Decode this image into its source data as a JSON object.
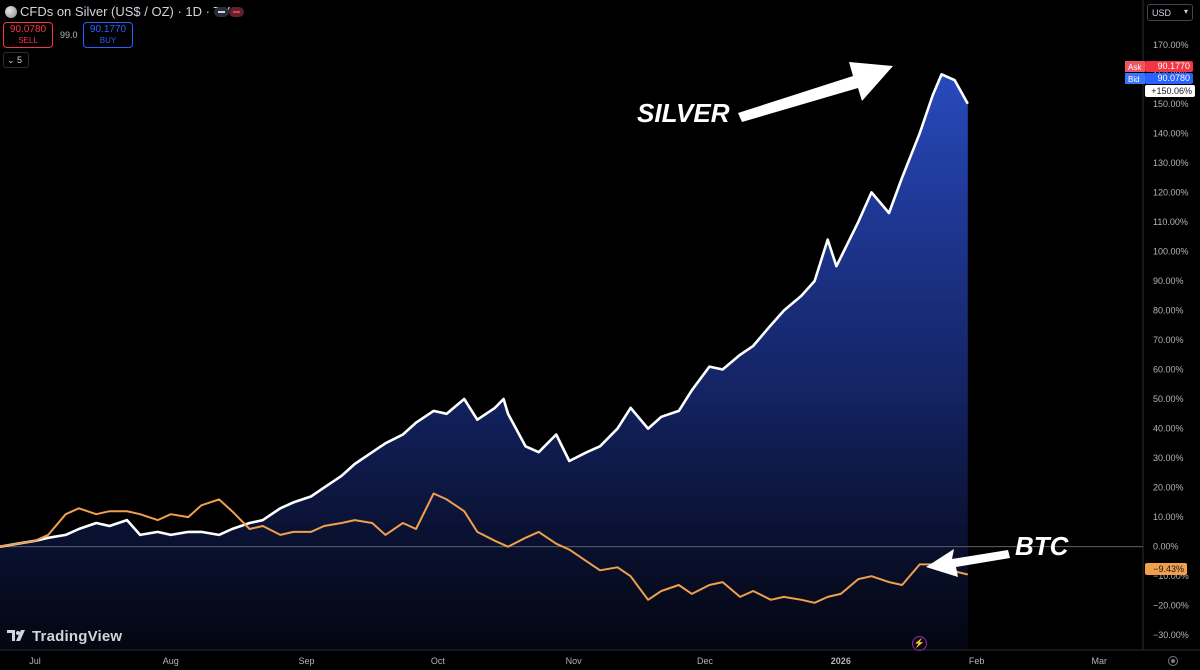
{
  "header": {
    "title": "CFDs on Silver (US$ / OZ) · 1D · TVC",
    "sell_price": "90.0780",
    "sell_label": "SELL",
    "buy_price": "90.1770",
    "buy_label": "BUY",
    "spread": "99.0",
    "collapse_count": "5",
    "currency": "USD"
  },
  "price_scale": {
    "ask_label": "Ask",
    "ask_value": "90.1770",
    "bid_label": "Bid",
    "bid_value": "90.0780",
    "silver_change": "+150.06%",
    "btc_change": "−9.43%"
  },
  "annotations": {
    "silver": "SILVER",
    "btc": "BTC"
  },
  "branding": {
    "logo_text": "TradingView"
  },
  "colors": {
    "background": "#000000",
    "silver_line": "#ffffff",
    "silver_fill": "#1e3ea8",
    "btc_line": "#f0a04b",
    "sell": "#f23645",
    "buy": "#2962ff",
    "axis_text": "#b2b5be"
  },
  "chart_data": {
    "type": "line",
    "title": "CFDs on Silver (US$ / OZ) · 1D · TVC",
    "x_ticks": [
      "Jul",
      "Aug",
      "Sep",
      "Oct",
      "Nov",
      "Dec",
      "2026",
      "Feb",
      "Mar"
    ],
    "y_ticks": [
      "170.00%",
      "160.00%",
      "150.00%",
      "140.00%",
      "130.00%",
      "120.00%",
      "110.00%",
      "100.00%",
      "90.00%",
      "80.00%",
      "70.00%",
      "60.00%",
      "50.00%",
      "40.00%",
      "30.00%",
      "20.00%",
      "10.00%",
      "0.00%",
      "−10.00%",
      "−20.00%",
      "−30.00%"
    ],
    "ylim": [
      -35,
      175
    ],
    "xlim": [
      "2025-06-23",
      "2026-03-11"
    ],
    "grid": false,
    "series": [
      {
        "name": "SILVER",
        "area": true,
        "x": [
          "2025-06-23",
          "2025-06-27",
          "2025-07-01",
          "2025-07-04",
          "2025-07-08",
          "2025-07-11",
          "2025-07-15",
          "2025-07-18",
          "2025-07-22",
          "2025-07-25",
          "2025-07-29",
          "2025-08-01",
          "2025-08-05",
          "2025-08-08",
          "2025-08-12",
          "2025-08-15",
          "2025-08-19",
          "2025-08-22",
          "2025-08-26",
          "2025-08-29",
          "2025-09-02",
          "2025-09-05",
          "2025-09-09",
          "2025-09-12",
          "2025-09-16",
          "2025-09-19",
          "2025-09-23",
          "2025-09-26",
          "2025-09-30",
          "2025-10-03",
          "2025-10-07",
          "2025-10-10",
          "2025-10-14",
          "2025-10-16",
          "2025-10-17",
          "2025-10-21",
          "2025-10-24",
          "2025-10-28",
          "2025-10-31",
          "2025-11-04",
          "2025-11-07",
          "2025-11-11",
          "2025-11-14",
          "2025-11-18",
          "2025-11-21",
          "2025-11-25",
          "2025-11-28",
          "2025-12-02",
          "2025-12-05",
          "2025-12-09",
          "2025-12-12",
          "2025-12-16",
          "2025-12-19",
          "2025-12-23",
          "2025-12-26",
          "2025-12-29",
          "2025-12-31",
          "2026-01-05",
          "2026-01-08",
          "2026-01-12",
          "2026-01-15",
          "2026-01-19",
          "2026-01-22",
          "2026-01-24",
          "2026-01-27",
          "2026-01-30"
        ],
        "values": [
          0,
          1,
          2,
          3,
          4,
          6,
          8,
          7,
          9,
          4,
          5,
          4,
          5,
          5,
          4,
          6,
          8,
          9,
          13,
          15,
          17,
          20,
          24,
          28,
          32,
          35,
          38,
          42,
          46,
          45,
          50,
          43,
          47,
          50,
          45,
          34,
          32,
          38,
          29,
          32,
          34,
          40,
          47,
          40,
          44,
          46,
          53,
          61,
          60,
          65,
          68,
          75,
          80,
          85,
          90,
          104,
          95,
          110,
          120,
          113,
          125,
          140,
          153,
          160,
          158,
          150
        ],
        "last_value": 150.06
      },
      {
        "name": "BTC",
        "area": false,
        "x": [
          "2025-06-23",
          "2025-06-27",
          "2025-07-01",
          "2025-07-04",
          "2025-07-08",
          "2025-07-11",
          "2025-07-15",
          "2025-07-18",
          "2025-07-22",
          "2025-07-25",
          "2025-07-29",
          "2025-08-01",
          "2025-08-05",
          "2025-08-08",
          "2025-08-12",
          "2025-08-15",
          "2025-08-19",
          "2025-08-22",
          "2025-08-26",
          "2025-08-29",
          "2025-09-02",
          "2025-09-05",
          "2025-09-09",
          "2025-09-12",
          "2025-09-16",
          "2025-09-19",
          "2025-09-23",
          "2025-09-26",
          "2025-09-30",
          "2025-10-03",
          "2025-10-07",
          "2025-10-10",
          "2025-10-14",
          "2025-10-17",
          "2025-10-21",
          "2025-10-24",
          "2025-10-28",
          "2025-10-31",
          "2025-11-04",
          "2025-11-07",
          "2025-11-11",
          "2025-11-14",
          "2025-11-18",
          "2025-11-21",
          "2025-11-25",
          "2025-11-28",
          "2025-12-02",
          "2025-12-05",
          "2025-12-09",
          "2025-12-12",
          "2025-12-16",
          "2025-12-19",
          "2025-12-23",
          "2025-12-26",
          "2025-12-29",
          "2026-01-01",
          "2026-01-05",
          "2026-01-08",
          "2026-01-12",
          "2026-01-15",
          "2026-01-19",
          "2026-01-22",
          "2026-01-26",
          "2026-01-30"
        ],
        "values": [
          0,
          1,
          2,
          4,
          11,
          13,
          11,
          12,
          12,
          11,
          9,
          11,
          10,
          14,
          16,
          12,
          6,
          7,
          4,
          5,
          5,
          7,
          8,
          9,
          8,
          4,
          8,
          6,
          18,
          16,
          12,
          5,
          2,
          0,
          3,
          5,
          1,
          -1,
          -5,
          -8,
          -7,
          -10,
          -18,
          -15,
          -13,
          -16,
          -13,
          -12,
          -17,
          -15,
          -18,
          -17,
          -18,
          -19,
          -17,
          -16,
          -11,
          -10,
          -12,
          -13,
          -6,
          -6,
          -8,
          -9.43
        ],
        "last_value": -9.43
      }
    ]
  }
}
